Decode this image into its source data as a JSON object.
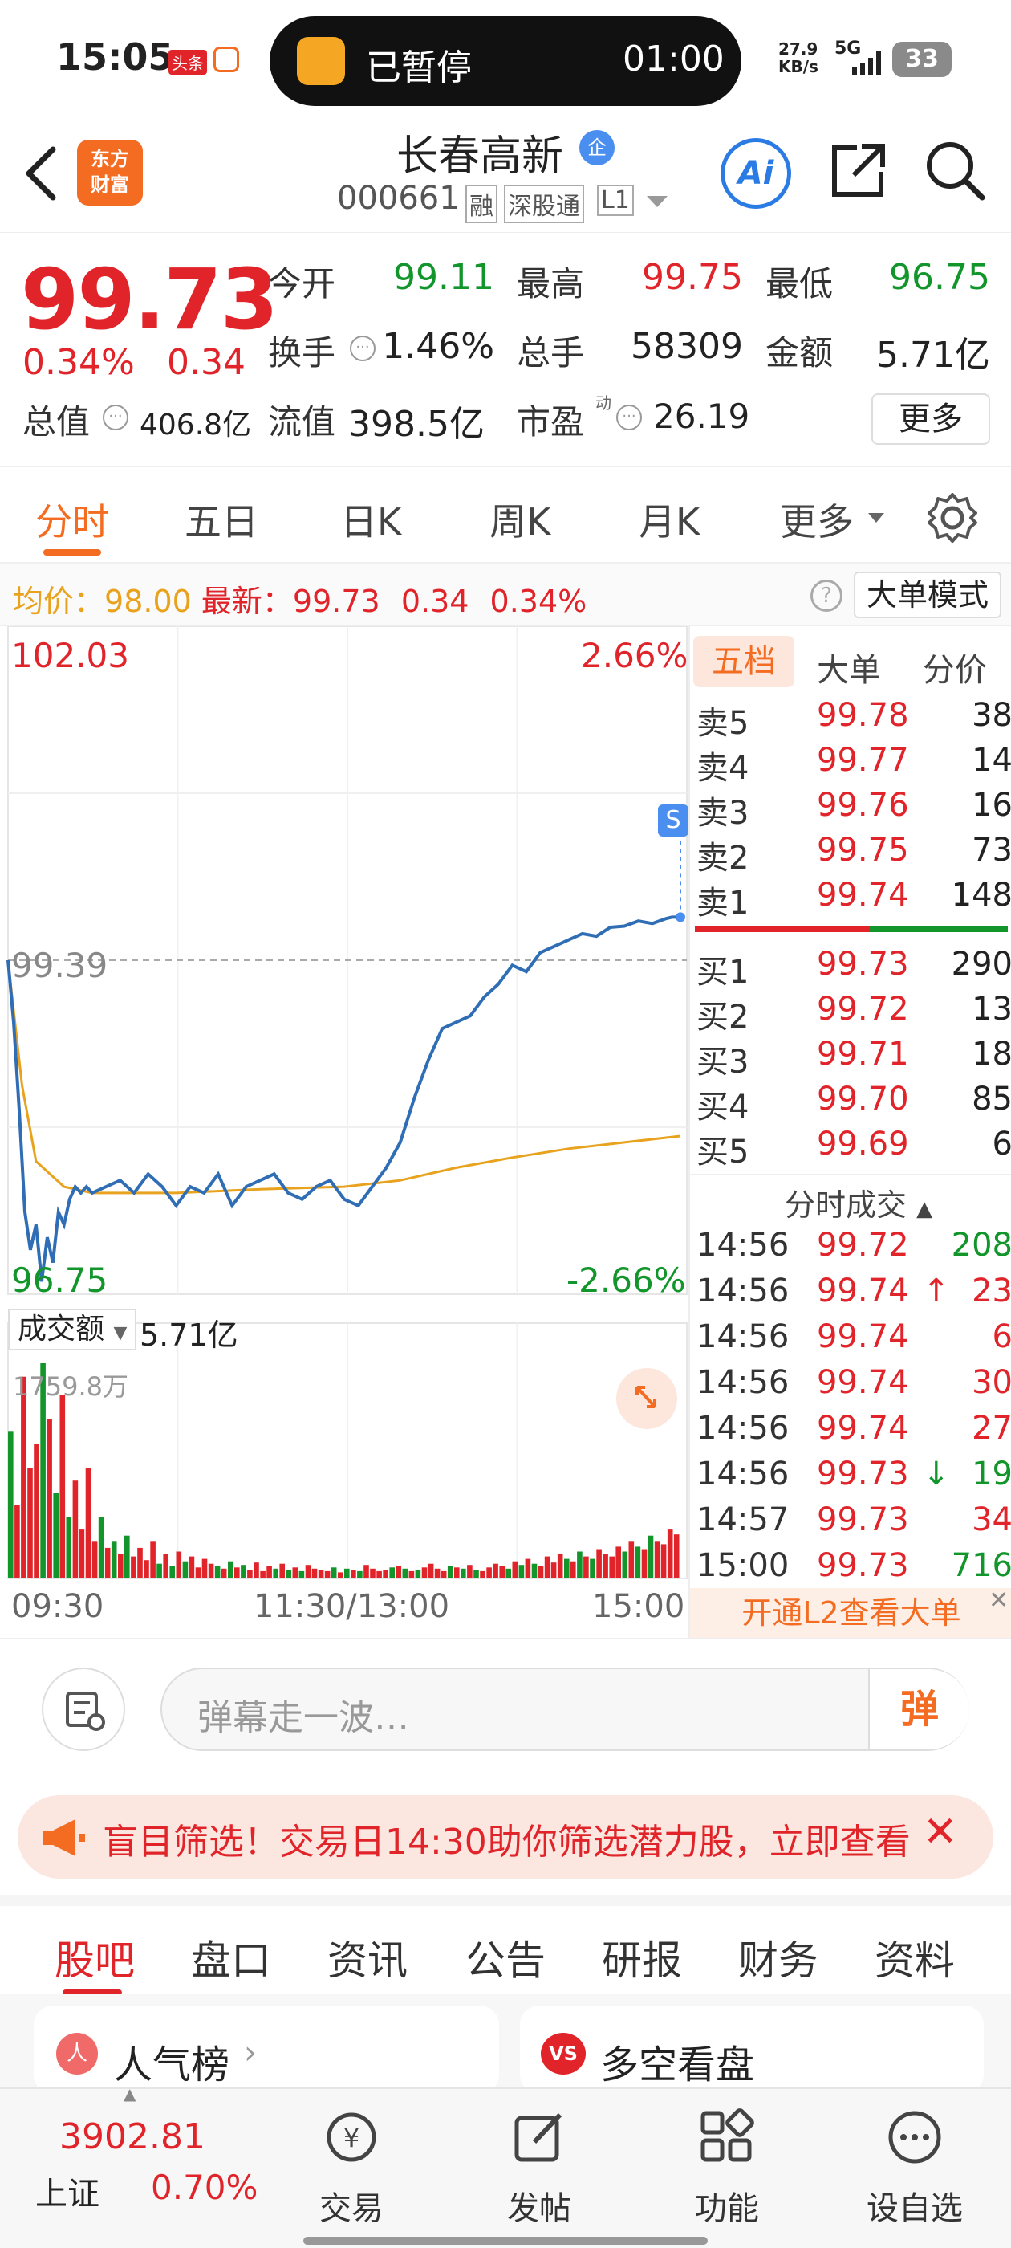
{
  "status_bar": {
    "time": "15:05",
    "badge1": "头条",
    "timer_status": "已暂停",
    "timer_value": "01:00",
    "net_speed": "27.9",
    "net_unit": "KB/s",
    "network": "5G",
    "battery": "33"
  },
  "header": {
    "logo_line1": "东方",
    "logo_line2": "财富",
    "stock_name": "长春高新",
    "tag": "企",
    "code": "000661",
    "badge_margin": "融",
    "badge_connect": "深股通",
    "badge_level": "L1"
  },
  "quote": {
    "price": "99.73",
    "change_pct": "0.34%",
    "change": "0.34",
    "open_label": "今开",
    "open": "99.11",
    "high_label": "最高",
    "high": "99.75",
    "low_label": "最低",
    "low": "96.75",
    "turnover_label": "换手",
    "turnover": "1.46%",
    "volume_label": "总手",
    "volume": "58309",
    "amount_label": "金额",
    "amount": "5.71亿",
    "mktcap_label": "总值",
    "mktcap": "406.8亿",
    "float_label": "流值",
    "float_cap": "398.5亿",
    "pe_label": "市盈",
    "pe_sup": "动",
    "pe": "26.19",
    "more": "更多"
  },
  "chart_tabs": [
    "分时",
    "五日",
    "日K",
    "周K",
    "月K",
    "更多"
  ],
  "info_line": {
    "avg_label": "均价：",
    "avg": "98.00",
    "latest_label": "最新：",
    "latest": "99.73",
    "chg": "0.34",
    "chg_pct": "0.34%",
    "mode_button": "大单模式"
  },
  "chart": {
    "y_top": "102.03",
    "y_mid": "99.39",
    "y_bot": "96.75",
    "pct_top": "2.66%",
    "pct_bot": "-2.66%",
    "marker": "S",
    "vol_selector": "成交额",
    "vol_total": "5.71亿",
    "vol_max": "1759.8万",
    "x_start": "09:30",
    "x_mid": "11:30/13:00",
    "x_end": "15:00"
  },
  "chart_data": [
    {
      "type": "line",
      "title": "",
      "xlabel": "",
      "ylabel": "",
      "x_ticks": [
        "09:30",
        "11:30/13:00",
        "15:00"
      ],
      "ylim": [
        96.75,
        102.03
      ],
      "reference": 99.39,
      "series": [
        {
          "name": "最新",
          "x": [
            0,
            2,
            4,
            6,
            8,
            10,
            12,
            14,
            16,
            18,
            20,
            22,
            24,
            26,
            28,
            30,
            35,
            40,
            45,
            50,
            55,
            60,
            65,
            70,
            75,
            80,
            85,
            90,
            95,
            100,
            105,
            110,
            115,
            120,
            125,
            130,
            135,
            140,
            145,
            150,
            155,
            160,
            165,
            170,
            175,
            180,
            185,
            190,
            195,
            200,
            205,
            210,
            215,
            220,
            225,
            230,
            235,
            237,
            240
          ],
          "values": [
            99.39,
            98.9,
            98.2,
            97.4,
            97.1,
            97.3,
            96.85,
            97.2,
            97.0,
            97.4,
            97.3,
            97.5,
            97.6,
            97.55,
            97.6,
            97.55,
            97.6,
            97.65,
            97.55,
            97.7,
            97.6,
            97.45,
            97.6,
            97.55,
            97.7,
            97.45,
            97.6,
            97.65,
            97.7,
            97.55,
            97.5,
            97.6,
            97.65,
            97.5,
            97.45,
            97.6,
            97.75,
            97.95,
            98.3,
            98.6,
            98.85,
            98.9,
            98.95,
            99.1,
            99.2,
            99.35,
            99.3,
            99.45,
            99.5,
            99.55,
            99.6,
            99.58,
            99.65,
            99.66,
            99.7,
            99.68,
            99.72,
            99.73,
            99.73
          ]
        },
        {
          "name": "均价",
          "x": [
            0,
            5,
            10,
            20,
            30,
            60,
            90,
            120,
            140,
            160,
            180,
            200,
            220,
            240
          ],
          "values": [
            99.39,
            98.4,
            97.8,
            97.6,
            97.55,
            97.55,
            97.58,
            97.6,
            97.65,
            97.75,
            97.83,
            97.9,
            97.95,
            98.0
          ]
        }
      ]
    },
    {
      "type": "bar",
      "title": "",
      "xlabel": "",
      "ylabel": "",
      "ylim": [
        0,
        1759.8
      ],
      "unit": "万",
      "values": [
        1200,
        600,
        1650,
        900,
        1100,
        1759.8,
        1300,
        700,
        1500,
        500,
        800,
        400,
        900,
        300,
        500,
        250,
        300,
        200,
        350,
        180,
        250,
        150,
        300,
        120,
        200,
        100,
        220,
        140,
        180,
        90,
        160,
        120,
        100,
        80,
        140,
        90,
        110,
        70,
        130,
        60,
        100,
        80,
        120,
        70,
        90,
        60,
        110,
        80,
        70,
        60,
        90,
        50,
        80,
        70,
        60,
        110,
        80,
        60,
        70,
        90,
        100,
        80,
        60,
        70,
        90,
        120,
        80,
        60,
        100,
        90,
        80,
        110,
        70,
        60,
        90,
        120,
        100,
        80,
        140,
        110,
        160,
        120,
        100,
        180,
        130,
        200,
        160,
        140,
        220,
        180,
        160,
        240,
        200,
        180,
        260,
        220,
        300,
        260,
        240,
        350,
        300,
        280,
        400,
        360
      ]
    }
  ],
  "order_book": {
    "tabs": [
      "五档",
      "大单",
      "分价"
    ],
    "asks": [
      {
        "label": "卖5",
        "price": "99.78",
        "vol": "38"
      },
      {
        "label": "卖4",
        "price": "99.77",
        "vol": "14"
      },
      {
        "label": "卖3",
        "price": "99.76",
        "vol": "16"
      },
      {
        "label": "卖2",
        "price": "99.75",
        "vol": "73"
      },
      {
        "label": "卖1",
        "price": "99.74",
        "vol": "148"
      }
    ],
    "bids": [
      {
        "label": "买1",
        "price": "99.73",
        "vol": "290"
      },
      {
        "label": "买2",
        "price": "99.72",
        "vol": "13"
      },
      {
        "label": "买3",
        "price": "99.71",
        "vol": "18"
      },
      {
        "label": "买4",
        "price": "99.70",
        "vol": "85"
      },
      {
        "label": "买5",
        "price": "99.69",
        "vol": "6"
      }
    ],
    "ticks_title": "分时成交",
    "ticks": [
      {
        "time": "14:56",
        "price": "99.72",
        "arrow": "",
        "vol": "208",
        "color": "#12952b"
      },
      {
        "time": "14:56",
        "price": "99.74",
        "arrow": "↑",
        "vol": "23",
        "color": "#e0242a"
      },
      {
        "time": "14:56",
        "price": "99.74",
        "arrow": "",
        "vol": "6",
        "color": "#e0242a"
      },
      {
        "time": "14:56",
        "price": "99.74",
        "arrow": "",
        "vol": "30",
        "color": "#e0242a"
      },
      {
        "time": "14:56",
        "price": "99.74",
        "arrow": "",
        "vol": "27",
        "color": "#e0242a"
      },
      {
        "time": "14:56",
        "price": "99.73",
        "arrow": "↓",
        "vol": "19",
        "color": "#12952b"
      },
      {
        "time": "14:57",
        "price": "99.73",
        "arrow": "",
        "vol": "34",
        "color": "#e0242a"
      },
      {
        "time": "15:00",
        "price": "99.73",
        "arrow": "",
        "vol": "716",
        "color": "#12952b"
      }
    ],
    "l2_promo": "开通L2查看大单"
  },
  "danmu": {
    "placeholder": "弹幕走一波…",
    "send": "弹"
  },
  "banner": {
    "text": "盲目筛选！交易日14:30助你筛选潜力股，立即查看"
  },
  "sub_tabs": [
    "股吧",
    "盘口",
    "资讯",
    "公告",
    "研报",
    "财务",
    "资料"
  ],
  "cards": [
    {
      "icon": "人",
      "title": "人气榜"
    },
    {
      "icon": "VS",
      "title": "多空看盘"
    }
  ],
  "bottom_bar": {
    "index_value": "3902.81",
    "index_name": "上证",
    "index_pct": "0.70%",
    "items": [
      "交易",
      "发帖",
      "功能",
      "设自选"
    ]
  },
  "colors": {
    "up": "#e0242a",
    "down": "#12952b",
    "accent": "#f36c21",
    "price_line": "#2f6db5",
    "avg_line": "#e8a21d"
  }
}
